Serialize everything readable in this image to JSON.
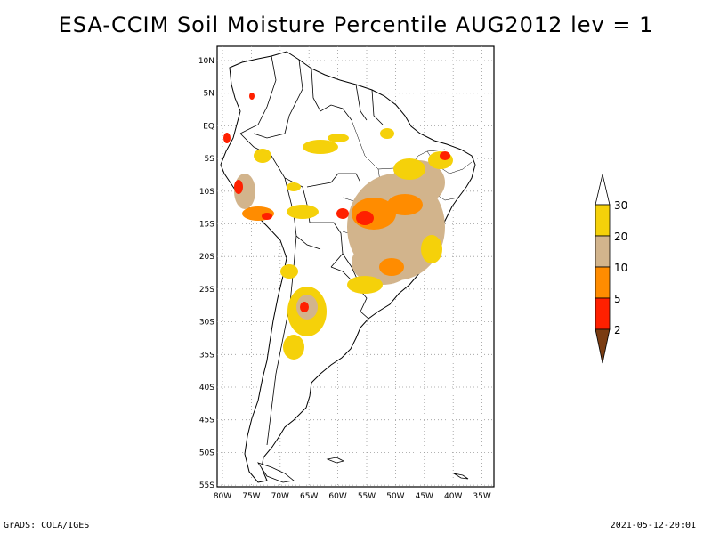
{
  "title": "ESA-CCIM Soil Moisture Percentile AUG2012 lev = 1",
  "map": {
    "lat_labels": [
      "10N",
      "5N",
      "EQ",
      "5S",
      "10S",
      "15S",
      "20S",
      "25S",
      "30S",
      "35S",
      "40S",
      "45S",
      "50S",
      "55S"
    ],
    "lon_labels": [
      "80W",
      "75W",
      "70W",
      "65W",
      "60W",
      "55W",
      "50W",
      "45W",
      "40W",
      "35W"
    ]
  },
  "colorbar": {
    "labels": [
      "30",
      "20",
      "10",
      "5",
      "2"
    ],
    "colors": {
      "top_open": "#ffffff",
      "c20_30": "#f5d10a",
      "c10_20": "#d2b48c",
      "c5_10": "#ff8c00",
      "c2_5": "#ff2000",
      "below_2": "#7a3c12"
    }
  },
  "footer": {
    "left": "GrADS: COLA/IGES",
    "right": "2021-05-12-20:01"
  }
}
